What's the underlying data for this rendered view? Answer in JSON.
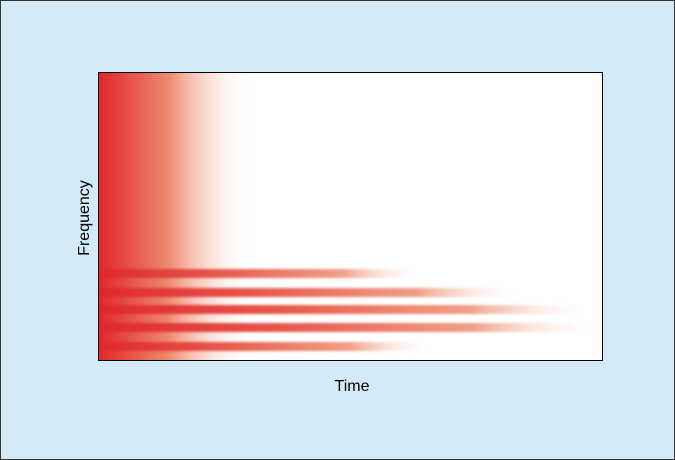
{
  "x_label": "Time",
  "y_label": "Frequency"
}
